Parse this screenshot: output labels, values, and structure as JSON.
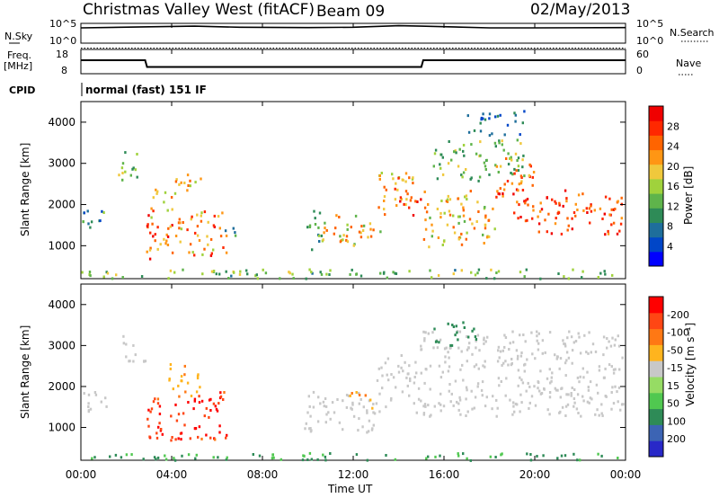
{
  "header": {
    "station": "Christmas Valley West (fitACF)",
    "beam": "Beam 09",
    "date": "02/May/2013"
  },
  "top_panels": {
    "nsky_label": "N.Sky",
    "nsearch_label": "N.Search",
    "nsky_ticks": [
      "10^5",
      "10^0"
    ],
    "nsearch_ticks": [
      "10^5",
      "10^0"
    ],
    "freq_label": "Freq.",
    "freq_unit": "[MHz]",
    "freq_ticks": [
      "18",
      "8"
    ],
    "nave_label": "Nave",
    "nave_ticks": [
      "60",
      "0"
    ],
    "cpid_label": "CPID",
    "cpid_value": "normal (fast) 151 IF"
  },
  "x_axis": {
    "label": "Time UT",
    "ticks": [
      "00:00",
      "04:00",
      "08:00",
      "12:00",
      "16:00",
      "20:00",
      "00:00"
    ]
  },
  "colors": {
    "power_scale": [
      "#0000ff",
      "#0046c8",
      "#1e6e9b",
      "#2e8b57",
      "#5fb44b",
      "#a0d23c",
      "#f0c83c",
      "#ff9614",
      "#ff6400",
      "#ff2800",
      "#f00000"
    ],
    "velocity_scale": [
      "#2828c8",
      "#3c64b4",
      "#2e8b57",
      "#50c850",
      "#96dc64",
      "#c8c8c8",
      "#ffb41e",
      "#ff7814",
      "#ff4614",
      "#ff0000"
    ]
  },
  "chart_data": [
    {
      "type": "line",
      "title": "N.Sky / N.Search",
      "x": [
        "00:00",
        "03:00",
        "05:00",
        "07:00",
        "10:00",
        "12:00",
        "14:00",
        "15:00",
        "18:00",
        "20:00",
        "24:00"
      ],
      "series": [
        {
          "name": "N.Sky",
          "values": [
            10000,
            20000,
            30000,
            15000,
            12000,
            15000,
            40000,
            30000,
            10000,
            10000,
            12000
          ]
        }
      ],
      "ylim": [
        1,
        100000
      ],
      "yscale": "log"
    },
    {
      "type": "line",
      "title": "Freq. [MHz] / Nave",
      "x": [
        "00:00",
        "02:50",
        "02:55",
        "15:00",
        "15:05",
        "24:00"
      ],
      "series": [
        {
          "name": "Freq.",
          "values": [
            13.6,
            13.6,
            10.6,
            10.6,
            13.6,
            13.6
          ]
        },
        {
          "name": "Nave",
          "values": [
            19,
            19,
            19,
            19,
            19,
            19
          ]
        }
      ],
      "ylim": [
        8,
        18
      ]
    },
    {
      "type": "heatmap",
      "ylabel": "Slant Range [km]",
      "xlabel": "Time UT",
      "xlim": [
        0,
        24
      ],
      "ylim": [
        200,
        4500
      ],
      "y_ticks": [
        "1000",
        "2000",
        "3000",
        "4000"
      ],
      "colorbar": {
        "label": "Power [dB]",
        "ticks": [
          "4",
          "8",
          "12",
          "16",
          "20",
          "24",
          "28"
        ],
        "range": [
          0,
          30
        ]
      }
    },
    {
      "type": "heatmap",
      "ylabel": "Slant Range [km]",
      "xlabel": "Time UT",
      "xlim": [
        0,
        24
      ],
      "ylim": [
        200,
        4500
      ],
      "y_ticks": [
        "1000",
        "2000",
        "3000",
        "4000"
      ],
      "colorbar": {
        "label": "Velocity [m s⁻¹]",
        "ticks": [
          "200",
          "100",
          "50",
          "15",
          "-15",
          "-50",
          "-100",
          "-200"
        ],
        "range": [
          -250,
          250
        ]
      }
    }
  ]
}
